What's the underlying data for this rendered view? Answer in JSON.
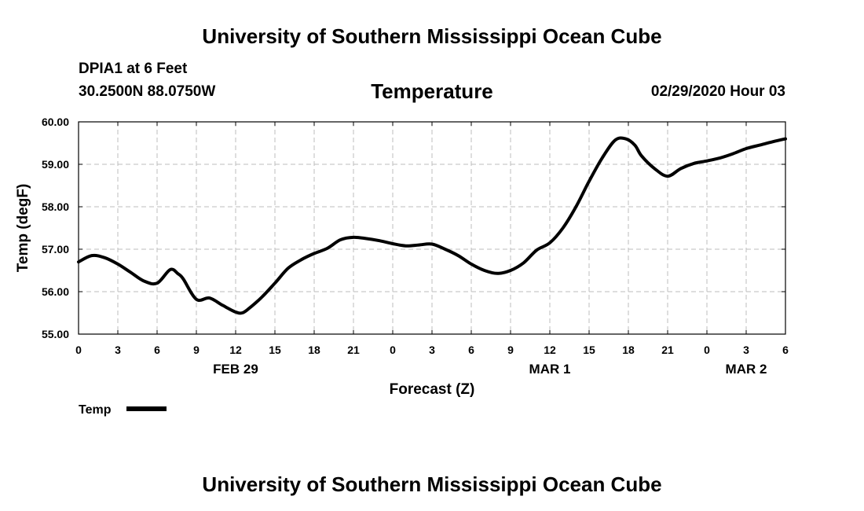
{
  "header": {
    "top_title": "University of Southern Mississippi Ocean Cube",
    "station": "DPIA1 at 6 Feet",
    "location": "30.2500N 88.0750W",
    "datetime": "02/29/2020 Hour 03"
  },
  "footer": {
    "bottom_title": "University of Southern Mississippi Ocean Cube"
  },
  "colors": {
    "line": "#000000",
    "grid": "#bdbdbd",
    "background": "#ffffff"
  },
  "chart_data": {
    "type": "line",
    "title": "Temperature",
    "xlabel": "Forecast (Z)",
    "ylabel": "Temp (degF)",
    "grid": true,
    "legend_position": "bottom-left",
    "xlim": [
      0,
      54
    ],
    "ylim": [
      55.0,
      60.0
    ],
    "x_ticks": [
      {
        "pos": 0,
        "label": "0"
      },
      {
        "pos": 3,
        "label": "3"
      },
      {
        "pos": 6,
        "label": "6"
      },
      {
        "pos": 9,
        "label": "9"
      },
      {
        "pos": 12,
        "label": "12"
      },
      {
        "pos": 15,
        "label": "15"
      },
      {
        "pos": 18,
        "label": "18"
      },
      {
        "pos": 21,
        "label": "21"
      },
      {
        "pos": 24,
        "label": "0"
      },
      {
        "pos": 27,
        "label": "3"
      },
      {
        "pos": 30,
        "label": "6"
      },
      {
        "pos": 33,
        "label": "9"
      },
      {
        "pos": 36,
        "label": "12"
      },
      {
        "pos": 39,
        "label": "15"
      },
      {
        "pos": 42,
        "label": "18"
      },
      {
        "pos": 45,
        "label": "21"
      },
      {
        "pos": 48,
        "label": "0"
      },
      {
        "pos": 51,
        "label": "3"
      },
      {
        "pos": 54,
        "label": "6"
      }
    ],
    "y_ticks": [
      "55.00",
      "56.00",
      "57.00",
      "58.00",
      "59.00",
      "60.00"
    ],
    "date_labels": [
      {
        "pos": 12,
        "label": "FEB 29"
      },
      {
        "pos": 36,
        "label": "MAR 1"
      },
      {
        "pos": 51,
        "label": "MAR 2"
      }
    ],
    "series": [
      {
        "name": "Temp",
        "x": [
          0,
          1,
          2,
          3,
          4,
          5,
          6,
          7,
          7.6,
          8,
          9,
          10,
          11,
          12,
          12.5,
          13,
          14,
          15,
          16,
          17,
          18,
          19,
          20,
          21,
          22,
          23,
          24,
          25,
          26,
          27,
          28,
          29,
          30,
          31,
          32,
          33,
          34,
          35,
          36,
          37,
          38,
          39,
          40,
          41,
          41.8,
          42.5,
          43,
          44,
          45,
          46,
          47,
          48,
          49,
          50,
          51,
          52,
          53,
          54
        ],
        "values": [
          56.7,
          56.85,
          56.8,
          56.65,
          56.45,
          56.25,
          56.2,
          56.52,
          56.42,
          56.3,
          55.82,
          55.85,
          55.68,
          55.52,
          55.5,
          55.6,
          55.87,
          56.2,
          56.55,
          56.75,
          56.9,
          57.02,
          57.22,
          57.28,
          57.25,
          57.2,
          57.13,
          57.08,
          57.1,
          57.12,
          57.0,
          56.85,
          56.65,
          56.5,
          56.43,
          56.5,
          56.68,
          56.98,
          57.15,
          57.5,
          58.0,
          58.6,
          59.15,
          59.57,
          59.6,
          59.45,
          59.2,
          58.9,
          58.72,
          58.9,
          59.02,
          59.08,
          59.15,
          59.25,
          59.37,
          59.45,
          59.53,
          59.6
        ]
      }
    ]
  }
}
